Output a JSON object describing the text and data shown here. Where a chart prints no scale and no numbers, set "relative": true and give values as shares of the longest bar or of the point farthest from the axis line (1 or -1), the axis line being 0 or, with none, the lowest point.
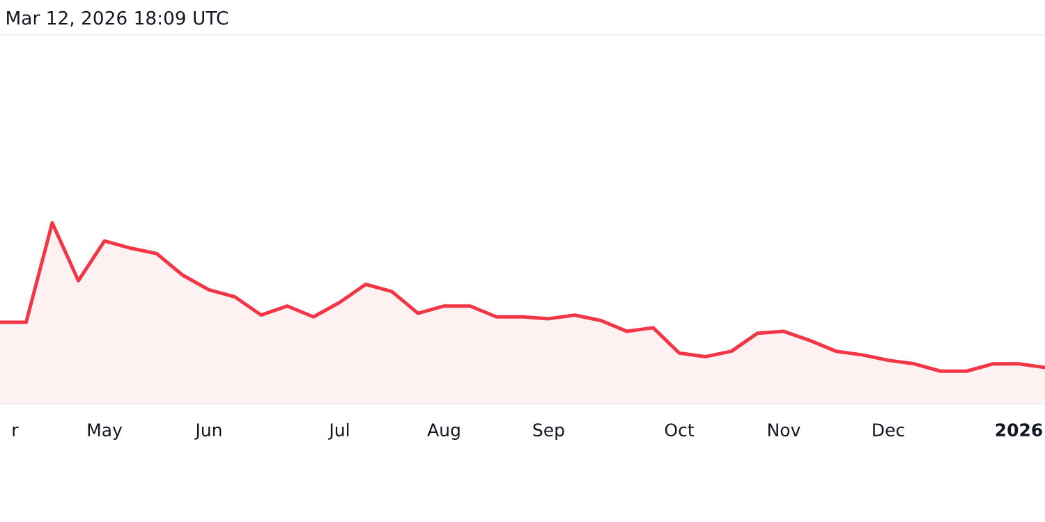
{
  "chart_data": {
    "type": "area",
    "relative": true,
    "annotations": [
      "Mar 12, 2026 18:09 UTC"
    ],
    "x": [
      "2025-04-07",
      "2025-04-14",
      "2025-04-21",
      "2025-04-28",
      "2025-05-05",
      "2025-05-12",
      "2025-05-19",
      "2025-05-26",
      "2025-06-02",
      "2025-06-09",
      "2025-06-16",
      "2025-06-23",
      "2025-06-30",
      "2025-07-07",
      "2025-07-14",
      "2025-07-21",
      "2025-07-28",
      "2025-08-04",
      "2025-08-11",
      "2025-08-18",
      "2025-08-25",
      "2025-09-01",
      "2025-09-08",
      "2025-09-15",
      "2025-09-22",
      "2025-09-29",
      "2025-10-06",
      "2025-10-13",
      "2025-10-20",
      "2025-10-27",
      "2025-11-03",
      "2025-11-10",
      "2025-11-17",
      "2025-11-24",
      "2025-12-01",
      "2025-12-08",
      "2025-12-15",
      "2025-12-22",
      "2025-12-29",
      "2026-01-05",
      "2026-01-12"
    ],
    "series": [
      {
        "color": "#f23645",
        "values": [
          0.45,
          0.45,
          1.0,
          0.68,
          0.9,
          0.86,
          0.83,
          0.71,
          0.63,
          0.59,
          0.49,
          0.54,
          0.48,
          0.56,
          0.66,
          0.62,
          0.5,
          0.54,
          0.54,
          0.48,
          0.48,
          0.47,
          0.49,
          0.46,
          0.4,
          0.42,
          0.28,
          0.26,
          0.29,
          0.39,
          0.4,
          0.35,
          0.29,
          0.27,
          0.24,
          0.22,
          0.18,
          0.18,
          0.22,
          0.22,
          0.2
        ]
      }
    ],
    "xlim": [
      "2025-04-07",
      "2026-01-12"
    ],
    "xticks": [
      {
        "value": "2025-04-11",
        "label": "r"
      },
      {
        "value": "2025-05-05",
        "label": "May"
      },
      {
        "value": "2025-06-02",
        "label": "Jun"
      },
      {
        "value": "2025-07-07",
        "label": "Jul"
      },
      {
        "value": "2025-08-04",
        "label": "Aug"
      },
      {
        "value": "2025-09-01",
        "label": "Sep"
      },
      {
        "value": "2025-10-06",
        "label": "Oct"
      },
      {
        "value": "2025-11-03",
        "label": "Nov"
      },
      {
        "value": "2025-12-01",
        "label": "Dec"
      },
      {
        "value": "2026-01-05",
        "label": "2026"
      }
    ],
    "tick_labels": "x",
    "grid": false,
    "legend": false
  }
}
